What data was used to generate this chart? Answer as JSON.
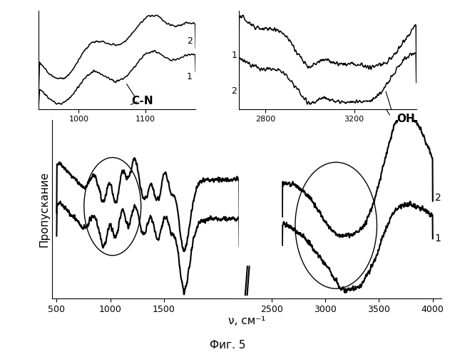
{
  "xlabel": "ν, см⁻¹",
  "ylabel": "Пропускание",
  "caption": "Фиг. 5",
  "cn_label": "C-N",
  "oh_label": "OH",
  "label1": "1",
  "label2": "2"
}
